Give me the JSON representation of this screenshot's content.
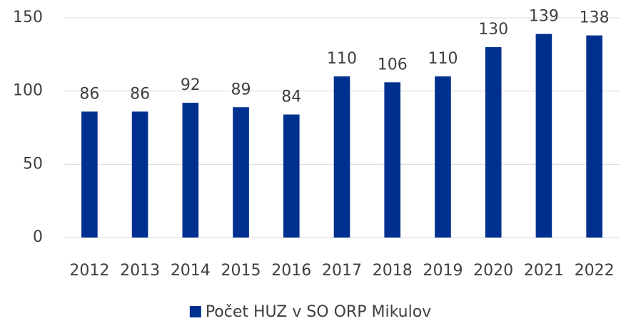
{
  "chart_data": {
    "type": "bar",
    "categories": [
      "2012",
      "2013",
      "2014",
      "2015",
      "2016",
      "2017",
      "2018",
      "2019",
      "2020",
      "2021",
      "2022"
    ],
    "series": [
      {
        "name": "Počet HUZ v SO ORP Mikulov",
        "color": "#00308f",
        "values": [
          86,
          86,
          92,
          89,
          84,
          110,
          106,
          110,
          130,
          139,
          138
        ]
      }
    ],
    "ylim": [
      0,
      150
    ],
    "yticks": [
      0,
      50,
      100,
      150
    ],
    "grid": true,
    "legend": "bottom",
    "data_labels": true
  }
}
